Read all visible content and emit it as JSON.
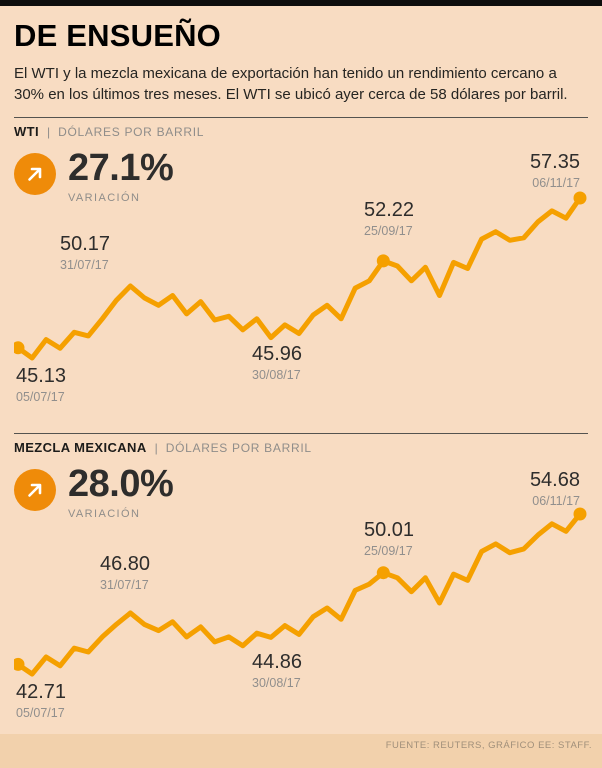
{
  "page": {
    "title": "DE ENSUEÑO",
    "intro": "El WTI y la mezcla mexicana de exportación han tenido un rendimiento cercano a 30% en los últimos tres meses. El WTI se ubicó ayer cerca de 58 dólares por barril.",
    "footer": "FUENTE: REUTERS, GRÁFICO EE: STAFF.",
    "colors": {
      "background": "#f8dcc2",
      "line": "#f5a000",
      "badge": "#ef8b09"
    }
  },
  "sections": [
    {
      "title": "WTI",
      "separator": "|",
      "unit": "DÓLARES POR BARRIL",
      "variation": "27.1%",
      "variation_label": "VARIACIÓN"
    },
    {
      "title": "MEZCLA MEXICANA",
      "separator": "|",
      "unit": "DÓLARES POR BARRIL",
      "variation": "28.0%",
      "variation_label": "VARIACIÓN"
    }
  ],
  "chart_data": [
    {
      "type": "line",
      "title": "WTI",
      "ylabel": "Dólares por barril",
      "xlabel": "",
      "grid": false,
      "legend": "none",
      "ylim": [
        44,
        58
      ],
      "x_range": [
        "05/07/17",
        "06/11/17"
      ],
      "variation_pct": 27.1,
      "series": [
        {
          "name": "WTI",
          "values": [
            45.13,
            44.3,
            45.8,
            45.1,
            46.4,
            46.1,
            47.5,
            49.0,
            50.17,
            49.2,
            48.6,
            49.4,
            47.9,
            48.9,
            47.4,
            47.7,
            46.6,
            47.5,
            45.96,
            47.0,
            46.3,
            47.8,
            48.6,
            47.5,
            50.0,
            50.6,
            52.22,
            51.8,
            50.6,
            51.7,
            49.4,
            52.1,
            51.6,
            54.0,
            54.6,
            53.9,
            54.1,
            55.4,
            56.3,
            55.7,
            57.35
          ]
        }
      ],
      "annotations": [
        {
          "value": "45.13",
          "date": "05/07/17",
          "index": 0,
          "dot": true
        },
        {
          "value": "50.17",
          "date": "31/07/17",
          "index": 8,
          "dot": false
        },
        {
          "value": "45.96",
          "date": "30/08/17",
          "index": 18,
          "dot": false
        },
        {
          "value": "52.22",
          "date": "25/09/17",
          "index": 26,
          "dot": true
        },
        {
          "value": "57.35",
          "date": "06/11/17",
          "index": 40,
          "dot": true
        }
      ]
    },
    {
      "type": "line",
      "title": "MEZCLA MEXICANA",
      "ylabel": "Dólares por barril",
      "xlabel": "",
      "grid": false,
      "legend": "none",
      "ylim": [
        41.5,
        55
      ],
      "x_range": [
        "05/07/17",
        "06/11/17"
      ],
      "variation_pct": 28.0,
      "series": [
        {
          "name": "MEZCLA MEXICANA",
          "values": [
            42.71,
            41.95,
            43.3,
            42.6,
            44.0,
            43.7,
            44.9,
            45.9,
            46.8,
            45.9,
            45.4,
            46.1,
            44.9,
            45.7,
            44.5,
            44.9,
            44.2,
            45.2,
            44.86,
            45.8,
            45.1,
            46.5,
            47.2,
            46.3,
            48.6,
            49.1,
            50.01,
            49.6,
            48.5,
            49.6,
            47.6,
            49.9,
            49.4,
            51.7,
            52.3,
            51.6,
            51.9,
            53.0,
            53.9,
            53.3,
            54.68
          ]
        }
      ],
      "annotations": [
        {
          "value": "42.71",
          "date": "05/07/17",
          "index": 0,
          "dot": true
        },
        {
          "value": "46.80",
          "date": "31/07/17",
          "index": 8,
          "dot": false
        },
        {
          "value": "44.86",
          "date": "30/08/17",
          "index": 18,
          "dot": false
        },
        {
          "value": "50.01",
          "date": "25/09/17",
          "index": 26,
          "dot": true
        },
        {
          "value": "54.68",
          "date": "06/11/17",
          "index": 40,
          "dot": true
        }
      ]
    }
  ]
}
